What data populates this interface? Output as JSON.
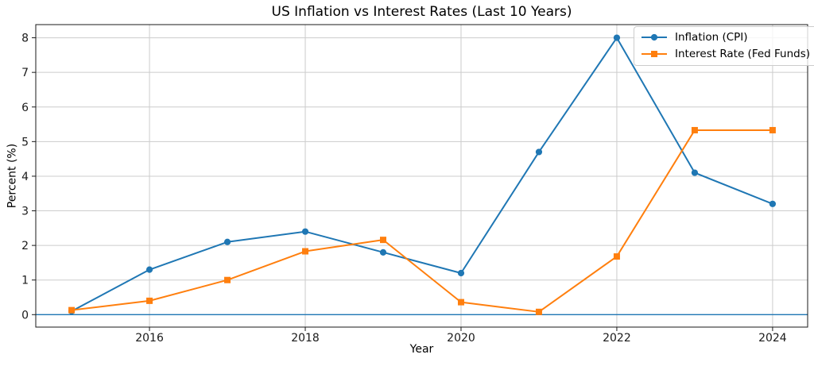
{
  "chart_data": {
    "type": "line",
    "title": "US Inflation vs Interest Rates (Last 10 Years)",
    "xlabel": "Year",
    "ylabel": "Percent (%)",
    "x": [
      2015,
      2016,
      2017,
      2018,
      2019,
      2020,
      2021,
      2022,
      2023,
      2024
    ],
    "series": [
      {
        "name": "Inflation (CPI)",
        "color": "#1f77b4",
        "marker": "circle",
        "values": [
          0.1,
          1.3,
          2.1,
          2.4,
          1.8,
          1.2,
          4.7,
          8.0,
          4.1,
          3.2
        ]
      },
      {
        "name": "Interest Rate (Fed Funds)",
        "color": "#ff7f0e",
        "marker": "square",
        "values": [
          0.13,
          0.4,
          1.0,
          1.83,
          2.16,
          0.36,
          0.08,
          1.68,
          5.33,
          5.33
        ]
      }
    ],
    "xticks": [
      2016,
      2018,
      2020,
      2022,
      2024
    ],
    "yticks": [
      0,
      1,
      2,
      3,
      4,
      5,
      6,
      7,
      8
    ],
    "xlim": [
      2014.54,
      2024.45
    ],
    "ylim": [
      -0.36,
      8.38
    ],
    "grid": true,
    "grid_color": "#cccccc",
    "spine_color": "#1a1a1a",
    "legend_position": "upper right",
    "zero_line": {
      "y": 0,
      "color": "#1f77b4"
    }
  }
}
